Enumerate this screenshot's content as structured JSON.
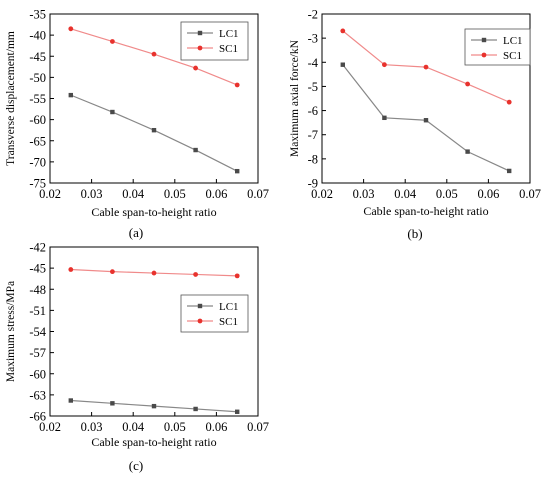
{
  "colors": {
    "LC1": "#4a4a4a",
    "SC1": "#e8322d",
    "LC1_line": "#888888",
    "SC1_line": "#f08a8a"
  },
  "chart_data": [
    {
      "type": "line",
      "caption": "(a)",
      "xlabel": "Cable span-to-height ratio",
      "ylabel": "Transverse displacement/mm",
      "xlim": [
        0.02,
        0.07
      ],
      "ylim": [
        -75,
        -35
      ],
      "xticks": [
        "0.02",
        "0.03",
        "0.04",
        "0.05",
        "0.06",
        "0.07"
      ],
      "yticks": [
        "-35",
        "-40",
        "-45",
        "-50",
        "-55",
        "-60",
        "-65",
        "-70",
        "-75"
      ],
      "legend_position": "top-right",
      "x": [
        0.025,
        0.035,
        0.045,
        0.055,
        0.065
      ],
      "series": [
        {
          "name": "LC1",
          "values": [
            -54.2,
            -58.2,
            -62.5,
            -67.2,
            -72.2
          ]
        },
        {
          "name": "SC1",
          "values": [
            -38.5,
            -41.5,
            -44.5,
            -47.8,
            -51.8
          ]
        }
      ]
    },
    {
      "type": "line",
      "caption": "(b)",
      "xlabel": "Cable span-to-height ratio",
      "ylabel": "Maximum axial force/kN",
      "xlim": [
        0.02,
        0.07
      ],
      "ylim": [
        -9,
        -2
      ],
      "xticks": [
        "0.02",
        "0.03",
        "0.04",
        "0.05",
        "0.06",
        "0.07"
      ],
      "yticks": [
        "-2",
        "-3",
        "-4",
        "-5",
        "-6",
        "-7",
        "-8",
        "-9"
      ],
      "legend_position": "top-right",
      "x": [
        0.025,
        0.035,
        0.045,
        0.055,
        0.065
      ],
      "series": [
        {
          "name": "LC1",
          "values": [
            -4.1,
            -6.3,
            -6.4,
            -7.7,
            -8.5
          ]
        },
        {
          "name": "SC1",
          "values": [
            -2.7,
            -4.1,
            -4.2,
            -4.9,
            -5.65
          ]
        }
      ]
    },
    {
      "type": "line",
      "caption": "(c)",
      "xlabel": "Cable span-to-height ratio",
      "ylabel": "Maximum stress/MPa",
      "xlim": [
        0.02,
        0.07
      ],
      "ylim": [
        -66,
        -42
      ],
      "xticks": [
        "0.02",
        "0.03",
        "0.04",
        "0.05",
        "0.06",
        "0.07"
      ],
      "yticks": [
        "-42",
        "-45",
        "-48",
        "-51",
        "-54",
        "-57",
        "-60",
        "-63",
        "-66"
      ],
      "legend_position": "center-right",
      "x": [
        0.025,
        0.035,
        0.045,
        0.055,
        0.065
      ],
      "series": [
        {
          "name": "LC1",
          "values": [
            -63.8,
            -64.2,
            -64.6,
            -65.0,
            -65.4
          ]
        },
        {
          "name": "SC1",
          "values": [
            -45.2,
            -45.5,
            -45.7,
            -45.9,
            -46.1
          ]
        }
      ]
    }
  ]
}
